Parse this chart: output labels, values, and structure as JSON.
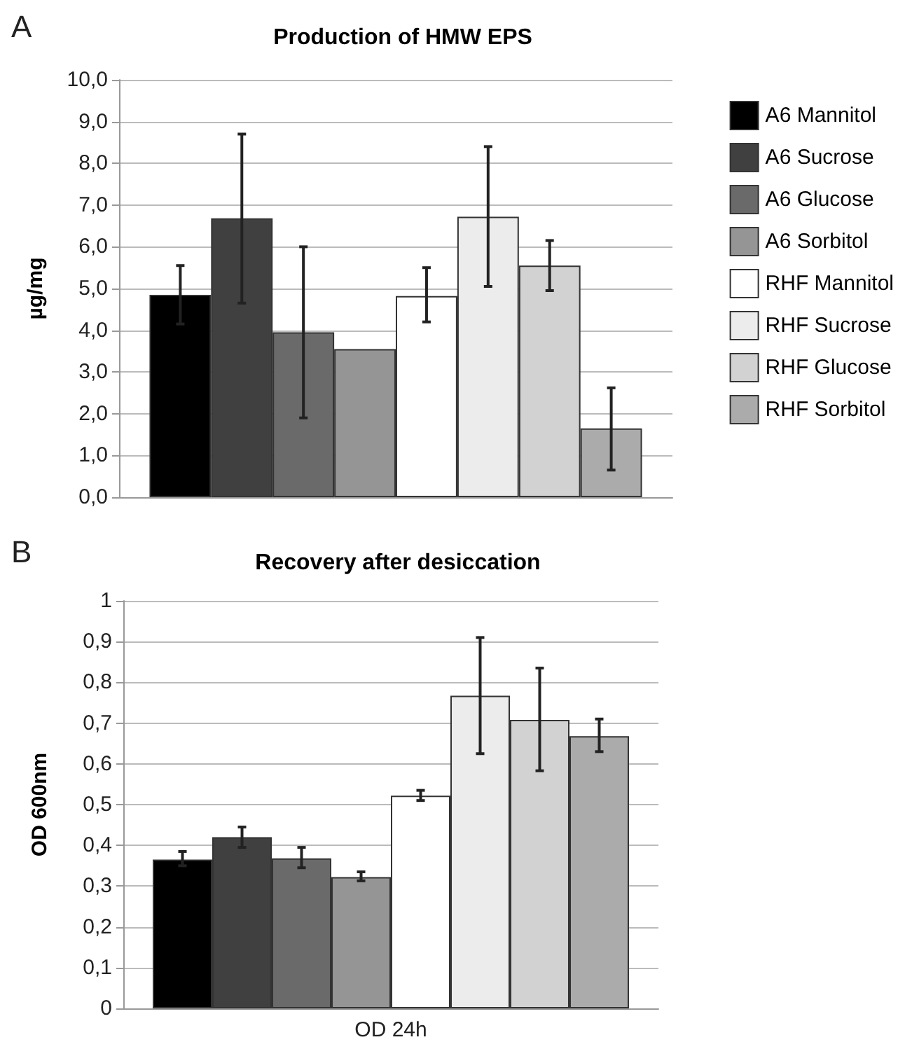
{
  "chart_data": [
    {
      "type": "bar",
      "title": "Production of HMW EPS",
      "ylabel": "µg/mg",
      "annotations": [
        "A"
      ],
      "categories": [
        null
      ],
      "series": [
        {
          "name": "A6 Mannitol",
          "color": "#000000",
          "values": [
            4.85
          ],
          "errors": [
            0.7
          ]
        },
        {
          "name": "A6 Sucrose",
          "color": "#404040",
          "values": [
            6.68
          ],
          "errors": [
            [
              4.65,
              8.7
            ]
          ]
        },
        {
          "name": "A6 Glucose",
          "color": "#6a6a6a",
          "values": [
            3.95
          ],
          "errors": [
            [
              1.9,
              6.0
            ]
          ]
        },
        {
          "name": "A6 Sorbitol",
          "color": "#959595",
          "values": [
            3.55
          ]
        },
        {
          "name": "RHF Mannitol",
          "color": "#ffffff",
          "values": [
            4.82
          ],
          "errors": [
            [
              4.2,
              5.5
            ]
          ]
        },
        {
          "name": "RHF Sucrose",
          "color": "#ececec",
          "values": [
            6.72
          ],
          "errors": [
            [
              5.05,
              8.4
            ]
          ]
        },
        {
          "name": "RHF Glucose",
          "color": "#d2d2d2",
          "values": [
            5.55
          ],
          "errors": [
            [
              4.95,
              6.15
            ]
          ]
        },
        {
          "name": "RHF Sorbitol",
          "color": "#ababab",
          "values": [
            1.65
          ],
          "errors": [
            [
              0.65,
              2.62
            ]
          ]
        }
      ],
      "ylim": [
        0,
        10
      ],
      "yticks": [
        {
          "value": 0,
          "label": "0,0"
        },
        {
          "value": 1,
          "label": "1,0"
        },
        {
          "value": 2,
          "label": "2,0"
        },
        {
          "value": 3,
          "label": "3,0"
        },
        {
          "value": 4,
          "label": "4,0"
        },
        {
          "value": 5,
          "label": "5,0"
        },
        {
          "value": 6,
          "label": "6,0"
        },
        {
          "value": 7,
          "label": "7,0"
        },
        {
          "value": 8,
          "label": "8,0"
        },
        {
          "value": 9,
          "label": "9,0"
        },
        {
          "value": 10,
          "label": "10,0"
        }
      ],
      "grid": "y",
      "legend": "right"
    },
    {
      "type": "bar",
      "title": "Recovery after desiccation",
      "ylabel": "OD 600nm",
      "annotations": [
        "B"
      ],
      "categories": [
        "OD 24h"
      ],
      "series": [
        {
          "color": "#000000",
          "values": [
            0.365
          ],
          "errors": [
            [
              0.35,
              0.385
            ]
          ]
        },
        {
          "color": "#404040",
          "values": [
            0.42
          ],
          "errors": [
            [
              0.395,
              0.445
            ]
          ]
        },
        {
          "color": "#6a6a6a",
          "values": [
            0.368
          ],
          "errors": [
            [
              0.345,
              0.395
            ]
          ]
        },
        {
          "color": "#959595",
          "values": [
            0.322
          ],
          "errors": [
            [
              0.313,
              0.335
            ]
          ]
        },
        {
          "color": "#ffffff",
          "values": [
            0.522
          ],
          "errors": [
            [
              0.51,
              0.535
            ]
          ]
        },
        {
          "color": "#ececec",
          "values": [
            0.767
          ],
          "errors": [
            [
              0.625,
              0.91
            ]
          ]
        },
        {
          "color": "#d2d2d2",
          "values": [
            0.708
          ],
          "errors": [
            [
              0.583,
              0.835
            ]
          ]
        },
        {
          "color": "#ababab",
          "values": [
            0.668
          ],
          "errors": [
            [
              0.63,
              0.71
            ]
          ]
        }
      ],
      "ylim": [
        0,
        1
      ],
      "yticks": [
        0,
        {
          "value": 0.1,
          "label": "0,1"
        },
        {
          "value": 0.2,
          "label": "0,2"
        },
        {
          "value": 0.3,
          "label": "0,3"
        },
        {
          "value": 0.4,
          "label": "0,4"
        },
        {
          "value": 0.5,
          "label": "0,5"
        },
        {
          "value": 0.6,
          "label": "0,6"
        },
        {
          "value": 0.7,
          "label": "0,7"
        },
        {
          "value": 0.8,
          "label": "0,8"
        },
        {
          "value": 0.9,
          "label": "0,9"
        },
        1
      ],
      "grid": "y",
      "legend": false
    }
  ]
}
